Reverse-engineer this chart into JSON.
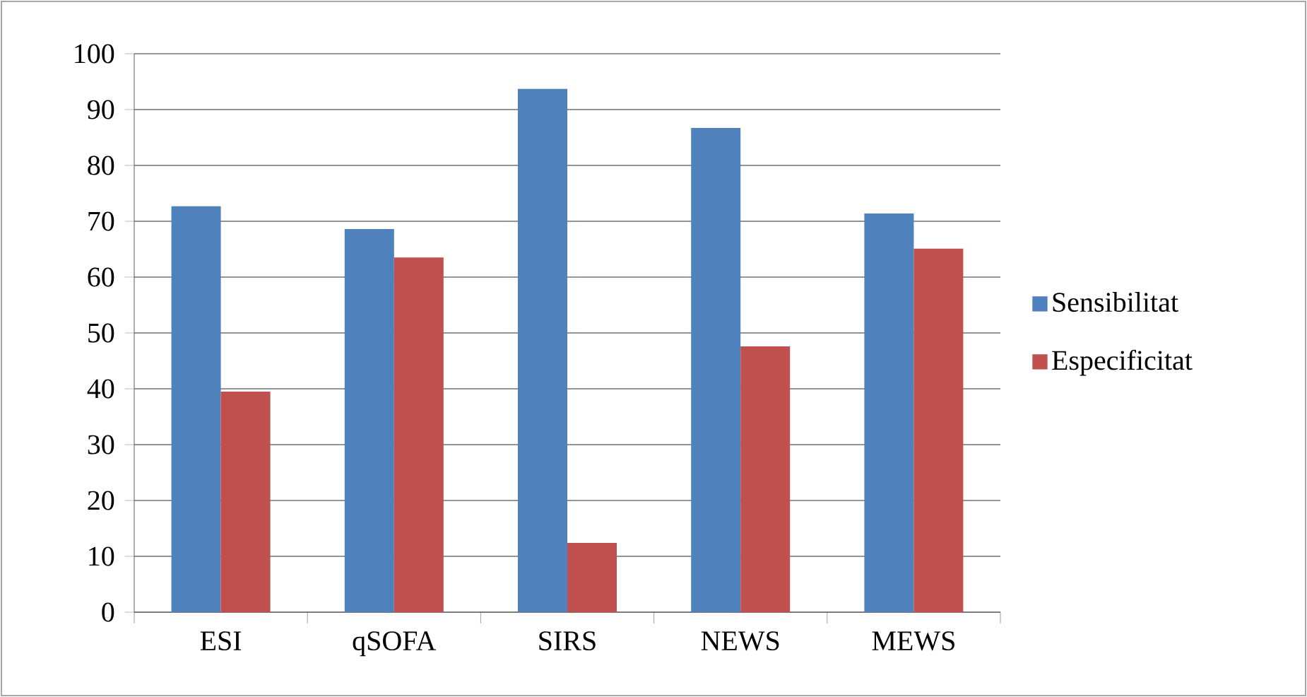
{
  "chart_data": {
    "type": "bar",
    "categories": [
      "ESI",
      "qSOFA",
      "SIRS",
      "NEWS",
      "MEWS"
    ],
    "series": [
      {
        "name": "Sensibilitat",
        "color": "#4f81bd",
        "values": [
          72.7,
          68.6,
          93.7,
          86.7,
          71.4
        ]
      },
      {
        "name": "Especificitat",
        "color": "#c0504d",
        "values": [
          39.5,
          63.5,
          12.4,
          47.6,
          65.1
        ]
      }
    ],
    "ylim": [
      0,
      100
    ],
    "yticks": [
      0,
      10,
      20,
      30,
      40,
      50,
      60,
      70,
      80,
      90,
      100
    ],
    "grid": "y",
    "legend": "right"
  }
}
